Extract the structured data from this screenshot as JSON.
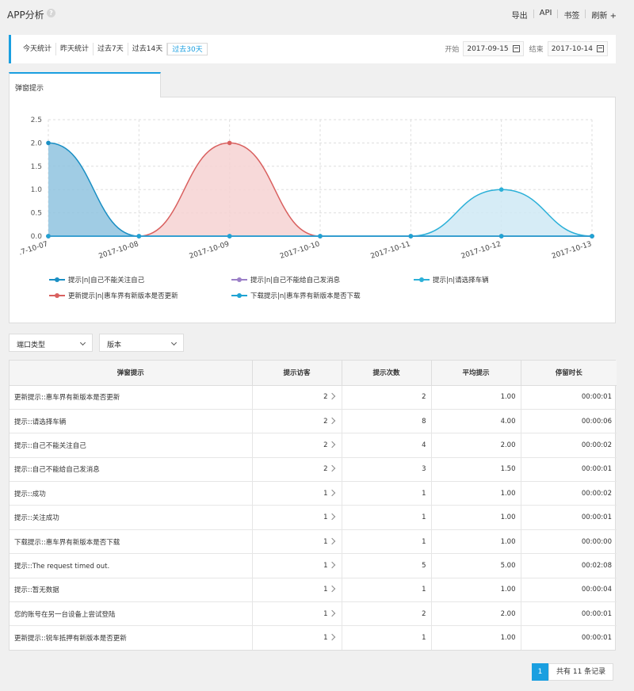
{
  "header": {
    "title": "APP分析",
    "actions": [
      "导出",
      "API",
      "书签",
      "刷新 +"
    ]
  },
  "filters": {
    "ranges": [
      "今天统计",
      "昨天统计",
      "过去7天",
      "过去14天",
      "过去30天"
    ],
    "active_range": 4,
    "start_label": "开始",
    "start_date": "2017-09-15",
    "end_label": "结束",
    "end_date": "2017-10-14"
  },
  "tab": {
    "label": "弹窗提示"
  },
  "chart_data": {
    "type": "area",
    "x": [
      ".7-10-07",
      "2017-10-08",
      "2017-10-09",
      "2017-10-10",
      "2017-10-11",
      "2017-10-12",
      "2017-10-13"
    ],
    "ylim": [
      0,
      2.5
    ],
    "yticks": [
      "2.5",
      "2.0",
      "1.5",
      "1.0",
      "0.5",
      "0.0"
    ],
    "grid": true,
    "legend_position": "bottom",
    "series": [
      {
        "name": "提示|n|自己不能关注自己",
        "values": [
          2,
          0,
          0,
          0,
          0,
          0,
          0
        ],
        "color": "#1a8fc4",
        "fill": "#8fc3df"
      },
      {
        "name": "提示|n|自己不能给自己发消息",
        "values": [
          0,
          0,
          0,
          0,
          0,
          0,
          0
        ],
        "color": "#9b7fc7",
        "fill": "none"
      },
      {
        "name": "提示|n|请选择车辆",
        "values": [
          0,
          0,
          0,
          0,
          0,
          1,
          0
        ],
        "color": "#2bb0d8",
        "fill": "#cfe9f5"
      },
      {
        "name": "更新提示|n|惠车界有新版本是否更新",
        "values": [
          0,
          0,
          2,
          0,
          0,
          0,
          0
        ],
        "color": "#d9605f",
        "fill": "#f6d2d2"
      },
      {
        "name": "下载提示|n|惠车界有新版本是否下载",
        "values": [
          0,
          0,
          0,
          0,
          0,
          0,
          0
        ],
        "color": "#1fa3d3",
        "fill": "none"
      }
    ]
  },
  "selects": {
    "interface_type": "端口类型",
    "version": "版本"
  },
  "table": {
    "headers": [
      "弹窗提示",
      "提示访客",
      "提示次数",
      "平均提示",
      "停留时长"
    ],
    "rows": [
      [
        "更新提示::惠车界有新版本是否更新",
        "2",
        "2",
        "1.00",
        "00:00:01"
      ],
      [
        "提示::请选择车辆",
        "2",
        "8",
        "4.00",
        "00:00:06"
      ],
      [
        "提示::自己不能关注自己",
        "2",
        "4",
        "2.00",
        "00:00:02"
      ],
      [
        "提示::自己不能给自己发消息",
        "2",
        "3",
        "1.50",
        "00:00:01"
      ],
      [
        "提示::成功",
        "1",
        "1",
        "1.00",
        "00:00:02"
      ],
      [
        "提示::关注成功",
        "1",
        "1",
        "1.00",
        "00:00:01"
      ],
      [
        "下载提示::惠车界有新版本是否下载",
        "1",
        "1",
        "1.00",
        "00:00:00"
      ],
      [
        "提示::The request timed out.",
        "1",
        "5",
        "5.00",
        "00:02:08"
      ],
      [
        "提示::暂无数据",
        "1",
        "1",
        "1.00",
        "00:00:04"
      ],
      [
        "您的账号在另一台设备上尝试登陆",
        "1",
        "2",
        "2.00",
        "00:00:01"
      ],
      [
        "更新提示::锐车抵押有新版本是否更新",
        "1",
        "1",
        "1.00",
        "00:00:01"
      ]
    ]
  },
  "pagination": {
    "current_page": "1",
    "total_text": "共有 11 条记录"
  }
}
